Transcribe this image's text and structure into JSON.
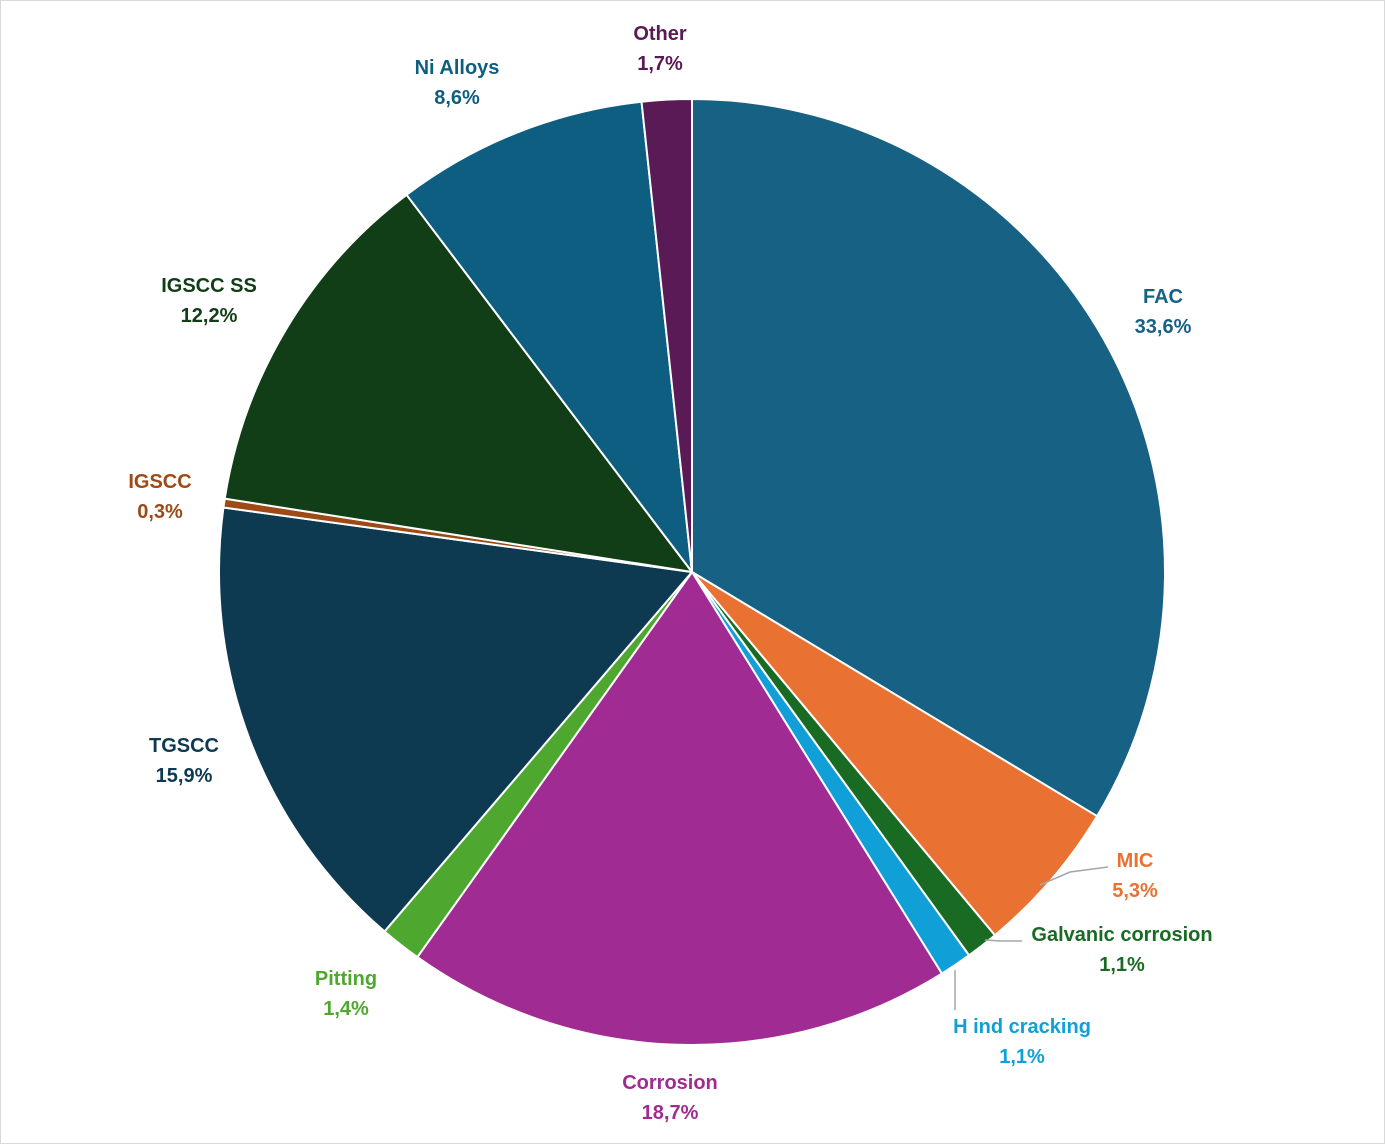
{
  "chart_data": {
    "type": "pie",
    "title": "",
    "slices": [
      {
        "name": "FAC",
        "value": 33.6,
        "label": "33,6%",
        "color": "#176184"
      },
      {
        "name": "MIC",
        "value": 5.3,
        "label": "5,3%",
        "color": "#e97132"
      },
      {
        "name": "Galvanic corrosion",
        "value": 1.1,
        "label": "1,1%",
        "color": "#196b24"
      },
      {
        "name": "H ind cracking",
        "value": 1.1,
        "label": "1,1%",
        "color": "#119fd8"
      },
      {
        "name": "Corrosion",
        "value": 18.7,
        "label": "18,7%",
        "color": "#a02b93"
      },
      {
        "name": "Pitting",
        "value": 1.4,
        "label": "1,4%",
        "color": "#4ea72e"
      },
      {
        "name": "TGSCC",
        "value": 15.9,
        "label": "15,9%",
        "color": "#0e3a51"
      },
      {
        "name": "IGSCC",
        "value": 0.3,
        "label": "0,3%",
        "color": "#9e4a17"
      },
      {
        "name": "IGSCC SS",
        "value": 12.2,
        "label": "12,2%",
        "color": "#113e17"
      },
      {
        "name": "Ni Alloys",
        "value": 8.6,
        "label": "8,6%",
        "color": "#0d5e80"
      },
      {
        "name": "Other",
        "value": 1.7,
        "label": "1,7%",
        "color": "#5a1a56"
      }
    ],
    "legend": "none",
    "data_labels": "outside"
  }
}
